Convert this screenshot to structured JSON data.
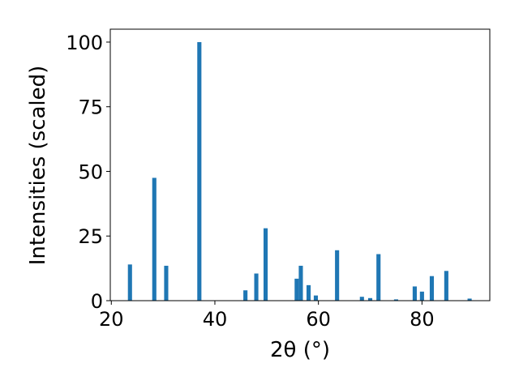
{
  "chart_data": {
    "type": "bar",
    "x_label": "2θ (°)",
    "y_label": "Intensities (scaled)",
    "x": [
      23.6,
      28.3,
      30.6,
      37.0,
      45.9,
      48.0,
      49.8,
      55.8,
      56.6,
      58.1,
      59.5,
      63.6,
      68.4,
      70.0,
      71.6,
      75.0,
      78.6,
      80.0,
      81.9,
      84.7,
      89.2
    ],
    "values": [
      14,
      47.5,
      13.5,
      100,
      4,
      10.5,
      28,
      8.5,
      13.5,
      6,
      2,
      19.5,
      1.5,
      1,
      18,
      0.5,
      5.5,
      3.5,
      9.5,
      11.5,
      0.8
    ],
    "color": "#1f77b4",
    "bar_width": 0.8,
    "xlim": [
      19.8,
      93.1
    ],
    "xticks": [
      20,
      40,
      60,
      80
    ],
    "ylim": [
      0,
      105
    ],
    "yticks": [
      0,
      25,
      50,
      75,
      100
    ]
  }
}
